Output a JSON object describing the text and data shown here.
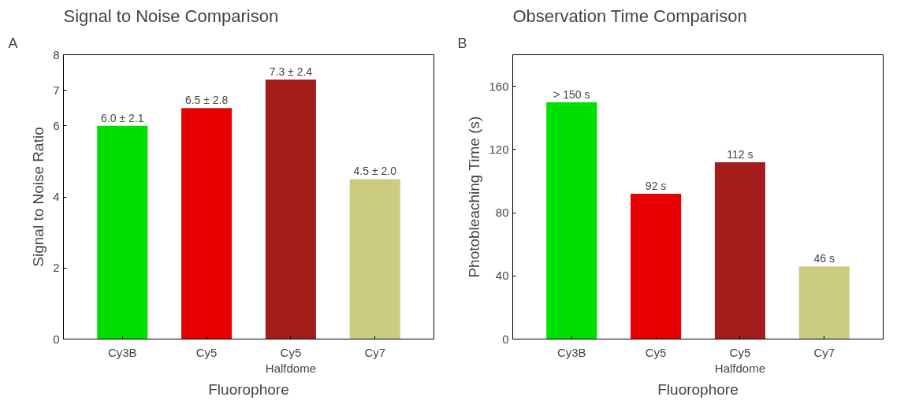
{
  "chart_data": [
    {
      "type": "bar",
      "title": "Signal to Noise Comparison",
      "annotations": [
        "A"
      ],
      "xlabel": "Fluorophore",
      "ylabel": "Signal to Noise Ratio",
      "categories": [
        "Cy3B",
        "Cy5",
        "Cy5\nHalfdome",
        "Cy7"
      ],
      "values": [
        6.0,
        6.5,
        7.3,
        4.5
      ],
      "colors": [
        "#00e000",
        "#e60000",
        "#a51c1c",
        "#cccc80"
      ],
      "value_labels": [
        "6.0 ± 2.1",
        "6.5 ± 2.8",
        "7.3 ± 2.4",
        "4.5 ± 2.0"
      ],
      "ylim": [
        0,
        8
      ],
      "yticks": [
        0,
        2,
        4,
        6,
        7,
        8
      ]
    },
    {
      "type": "bar",
      "title": "Observation Time Comparison",
      "annotations": [
        "B"
      ],
      "xlabel": "Fluorophore",
      "ylabel": "Photobleaching Time (s)",
      "categories": [
        "Cy3B",
        "Cy5",
        "Cy5\nHalfdome",
        "Cy7"
      ],
      "values": [
        150,
        92,
        112,
        46
      ],
      "colors": [
        "#00e000",
        "#e60000",
        "#a51c1c",
        "#cccc80"
      ],
      "value_labels": [
        "> 150 s",
        "92 s",
        "112 s",
        "46 s"
      ],
      "ylim": [
        0,
        180
      ],
      "yticks": [
        0,
        40,
        80,
        120,
        160
      ]
    }
  ]
}
